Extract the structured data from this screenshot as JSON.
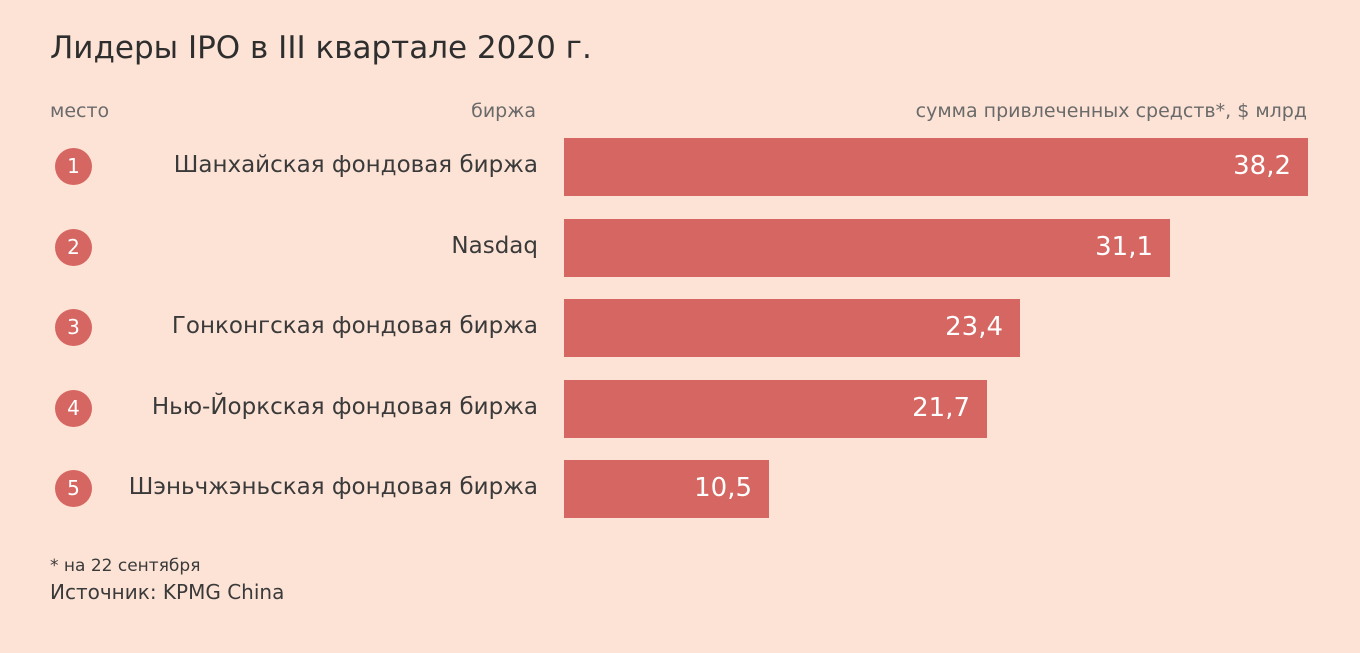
{
  "chart_data": {
    "type": "bar",
    "title": "Лидеры IPO в III квартале 2020 г.",
    "header_rank": "место",
    "header_category": "биржа",
    "ylabel": "сумма привлеченных средств*, $ млрд",
    "categories": [
      "Шанхайская фондовая биржа",
      "Nasdaq",
      "Гонконгская фондовая биржа",
      "Нью-Йоркская фондовая биржа",
      "Шэньчжэньская фондовая биржа"
    ],
    "ranks": [
      "1",
      "2",
      "3",
      "4",
      "5"
    ],
    "values": [
      38.2,
      31.1,
      23.4,
      21.7,
      10.5
    ],
    "value_labels": [
      "38,2",
      "31,1",
      "23,4",
      "21,7",
      "10,5"
    ],
    "ylim": [
      0,
      38.2
    ],
    "orientation": "horizontal"
  },
  "footnote": "* на 22 сентября",
  "source": "Источник: KPMG China",
  "colors": {
    "background": "#fde3d6",
    "bar": "#d66661"
  }
}
